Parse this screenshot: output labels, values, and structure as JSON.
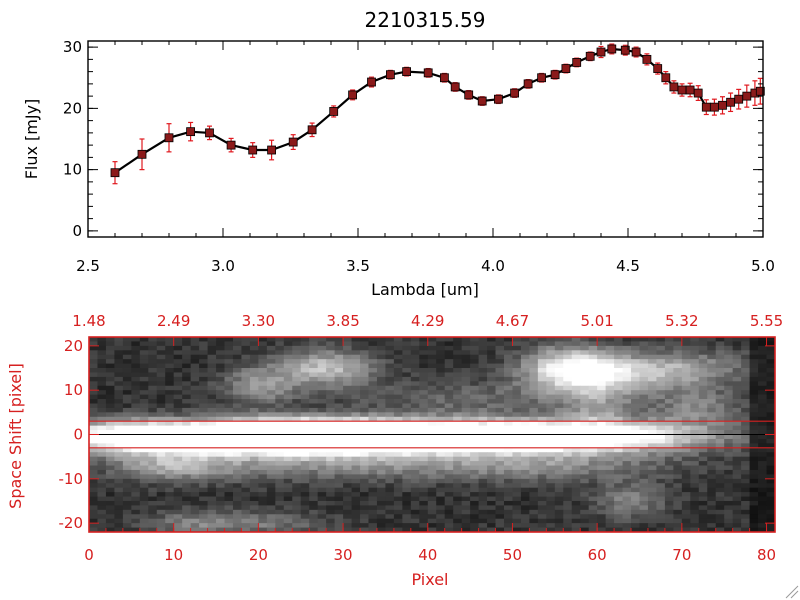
{
  "colors": {
    "spectrum_line": "#000000",
    "marker": "#8b1a1a",
    "error_bar": "#e0191f",
    "image_frame": "#d62020",
    "axis_black": "#000000"
  },
  "chart_data": [
    {
      "type": "line",
      "title": "2210315.59",
      "xlabel": "Lambda [um]",
      "ylabel": "Flux [mJy]",
      "xlim": [
        2.5,
        5.0
      ],
      "ylim": [
        -1,
        31
      ],
      "xticks": [
        "2.5",
        "3.0",
        "3.5",
        "4.0",
        "4.5",
        "5.0"
      ],
      "yticks": [
        "0",
        "10",
        "20",
        "30"
      ],
      "grid": false,
      "series": [
        {
          "x": [
            2.6,
            2.7,
            2.8,
            2.88,
            2.95,
            3.03,
            3.11,
            3.18,
            3.26,
            3.33,
            3.41,
            3.48,
            3.55,
            3.62,
            3.68,
            3.76,
            3.82,
            3.86,
            3.91,
            3.96,
            4.02,
            4.08,
            4.13,
            4.18,
            4.23,
            4.27,
            4.31,
            4.36,
            4.4,
            4.44,
            4.49,
            4.53,
            4.57,
            4.61,
            4.64,
            4.67,
            4.7,
            4.73,
            4.76,
            4.79,
            4.82,
            4.85,
            4.88,
            4.91,
            4.94,
            4.97,
            4.99
          ],
          "y": [
            9.5,
            12.5,
            15.2,
            16.2,
            16.0,
            14.0,
            13.2,
            13.2,
            14.5,
            16.5,
            19.5,
            22.2,
            24.3,
            25.5,
            26.0,
            25.8,
            25.0,
            23.5,
            22.2,
            21.2,
            21.5,
            22.5,
            24.0,
            25.0,
            25.5,
            26.5,
            27.5,
            28.5,
            29.2,
            29.7,
            29.5,
            29.2,
            28.0,
            26.5,
            25.0,
            23.5,
            23.0,
            23.0,
            22.5,
            20.2,
            20.2,
            20.5,
            21.0,
            21.5,
            22.0,
            22.5,
            22.8
          ],
          "yerr": [
            1.8,
            2.5,
            2.3,
            1.5,
            1.1,
            1.1,
            1.2,
            1.6,
            1.2,
            1.1,
            0.9,
            0.8,
            0.8,
            0.7,
            0.7,
            0.7,
            0.7,
            0.7,
            0.7,
            0.7,
            0.7,
            0.7,
            0.7,
            0.7,
            0.7,
            0.7,
            0.7,
            0.7,
            0.9,
            0.8,
            0.8,
            0.8,
            0.9,
            0.9,
            1.0,
            1.0,
            1.0,
            1.1,
            1.2,
            1.2,
            1.3,
            1.4,
            1.5,
            1.6,
            1.8,
            2.0,
            2.1
          ]
        }
      ]
    },
    {
      "type": "heatmap",
      "xlabel": "Pixel",
      "ylabel": "Space Shift [pixel]",
      "xlim": [
        0,
        81
      ],
      "ylim": [
        -22,
        22
      ],
      "xticks": [
        "0",
        "10",
        "20",
        "30",
        "40",
        "50",
        "60",
        "70",
        "80"
      ],
      "yticks": [
        "-20",
        "-10",
        "0",
        "10",
        "20"
      ],
      "top_xticks": [
        "1.48",
        "2.49",
        "3.30",
        "3.85",
        "4.29",
        "4.67",
        "5.01",
        "5.32",
        "5.55"
      ],
      "aperture_lines_y": [
        -3,
        3
      ],
      "center_line_y": 0
    }
  ]
}
